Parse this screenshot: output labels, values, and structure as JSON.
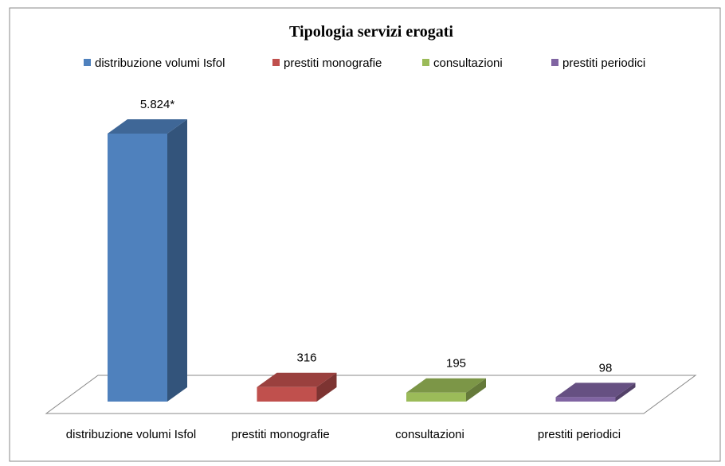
{
  "chart_data": {
    "type": "bar3d",
    "title": "Tipologia servizi erogati",
    "categories": [
      "distribuzione volumi Isfol",
      "prestiti monografie",
      "consultazioni",
      "prestiti periodici"
    ],
    "values": [
      5824,
      316,
      195,
      98
    ],
    "value_labels": [
      "5.824*",
      "316",
      "195",
      "98"
    ],
    "colors": [
      "#4f81bd",
      "#c0504d",
      "#9bbb59",
      "#8064a2"
    ],
    "legend": "top"
  }
}
